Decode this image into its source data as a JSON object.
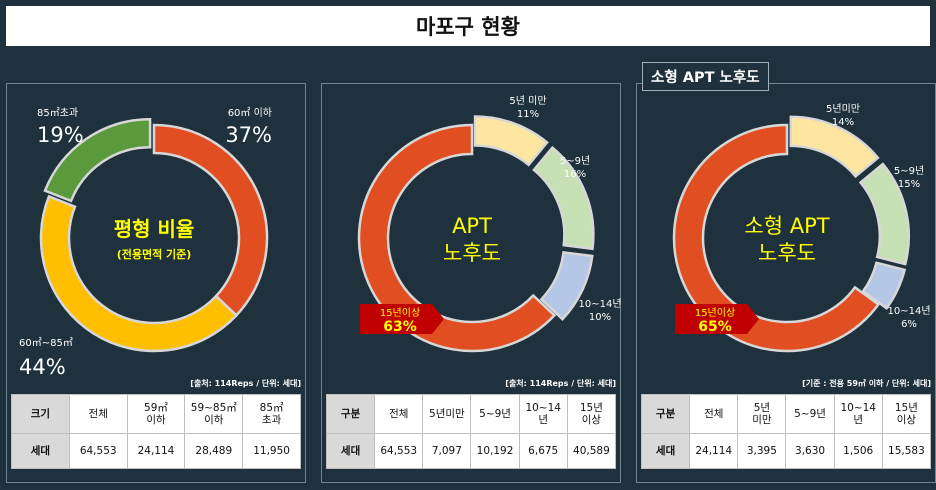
{
  "title": "마포구 현황",
  "badge": "소형 APT 노후도",
  "chart_data": [
    {
      "type": "pie",
      "center_title": "평형 비율",
      "center_subtitle": "(전용면적 기준)",
      "slices": [
        {
          "label": "60㎡ 이하",
          "pct": "37%",
          "value": 37,
          "color": "#e04e22"
        },
        {
          "label": "60㎡~85㎡",
          "pct": "44%",
          "value": 44,
          "color": "#ffbe00"
        },
        {
          "label": "85㎡초과",
          "pct": "19%",
          "value": 19,
          "color": "#5a9a3c"
        }
      ]
    },
    {
      "type": "pie",
      "center_title": "APT",
      "center_title2": "노후도",
      "slices": [
        {
          "label": "5년 미만",
          "pct": "11%",
          "value": 11,
          "color": "#ffe6a0"
        },
        {
          "label": "5~9년",
          "pct": "16%",
          "value": 16,
          "color": "#c6e0b4"
        },
        {
          "label": "10~14년",
          "pct": "10%",
          "value": 10,
          "color": "#b4c7e7"
        },
        {
          "label": "15년이상",
          "pct": "63%",
          "value": 63,
          "color": "#e04e22"
        }
      ]
    },
    {
      "type": "pie",
      "center_title": "소형 APT",
      "center_title2": "노후도",
      "slices": [
        {
          "label": "5년미만",
          "pct": "14%",
          "value": 14,
          "color": "#ffe6a0"
        },
        {
          "label": "5~9년",
          "pct": "15%",
          "value": 15,
          "color": "#c6e0b4"
        },
        {
          "label": "10~14년",
          "pct": "6%",
          "value": 6,
          "color": "#b4c7e7"
        },
        {
          "label": "15년이상",
          "pct": "65%",
          "value": 65,
          "color": "#e04e22"
        }
      ]
    }
  ],
  "sources": [
    "[출처: 114Reps / 단위: 세대]",
    "[출처: 114Reps / 단위: 세대]",
    "[기준 : 전용 59㎡ 이하 / 단위: 세대]"
  ],
  "tables": [
    {
      "headers": [
        "크기",
        "전체",
        "59㎡\n이하",
        "59~85㎡\n이하",
        "85㎡\n초과"
      ],
      "row": [
        "세대",
        "64,553",
        "24,114",
        "28,489",
        "11,950"
      ]
    },
    {
      "headers": [
        "구분",
        "전체",
        "5년미만",
        "5~9년",
        "10~14년",
        "15년\n이상"
      ],
      "row": [
        "세대",
        "64,553",
        "7,097",
        "10,192",
        "6,675",
        "40,589"
      ]
    },
    {
      "headers": [
        "구분",
        "전체",
        "5년\n미만",
        "5~9년",
        "10~14년",
        "15년\n이상"
      ],
      "row": [
        "세대",
        "24,114",
        "3,395",
        "3,630",
        "1,506",
        "15,583"
      ]
    }
  ]
}
